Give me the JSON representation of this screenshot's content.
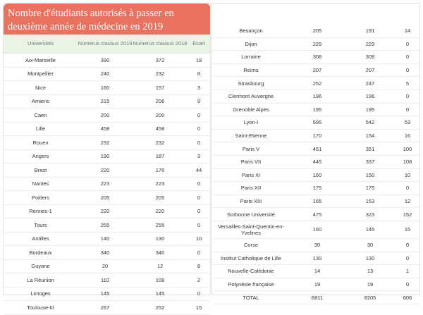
{
  "title": "Nombre d'étudiants autorisés à passer en deuxième année de médecine en 2019",
  "headers": {
    "universites": "Universités",
    "nc2019": "Numerus clausus 2019",
    "nc2018": "Numerus clausus 2018",
    "ecart": "Ecart"
  },
  "left_rows": [
    {
      "u": "Aix-Marseille",
      "a": "390",
      "b": "372",
      "e": "18"
    },
    {
      "u": "Montpellier",
      "a": "240",
      "b": "232",
      "e": "8"
    },
    {
      "u": "Nice",
      "a": "160",
      "b": "157",
      "e": "3"
    },
    {
      "u": "Amiens",
      "a": "215",
      "b": "206",
      "e": "9"
    },
    {
      "u": "Caen",
      "a": "200",
      "b": "200",
      "e": "0"
    },
    {
      "u": "Lille",
      "a": "458",
      "b": "458",
      "e": "0"
    },
    {
      "u": "Rouen",
      "a": "232",
      "b": "232",
      "e": "0"
    },
    {
      "u": "Angers",
      "a": "190",
      "b": "187",
      "e": "3"
    },
    {
      "u": "Brest",
      "a": "220",
      "b": "176",
      "e": "44"
    },
    {
      "u": "Nantes",
      "a": "223",
      "b": "223",
      "e": "0"
    },
    {
      "u": "Poitiers",
      "a": "205",
      "b": "205",
      "e": "0"
    },
    {
      "u": "Rennes-1",
      "a": "220",
      "b": "220",
      "e": "0"
    },
    {
      "u": "Tours",
      "a": "255",
      "b": "255",
      "e": "0"
    },
    {
      "u": "Antilles",
      "a": "140",
      "b": "130",
      "e": "10"
    },
    {
      "u": "Bordeaux",
      "a": "340",
      "b": "340",
      "e": "0"
    },
    {
      "u": "Guyane",
      "a": "20",
      "b": "12",
      "e": "8"
    },
    {
      "u": "La Réunion",
      "a": "110",
      "b": "108",
      "e": "2"
    },
    {
      "u": "Limoges",
      "a": "145",
      "b": "145",
      "e": "0"
    },
    {
      "u": "Toulouse-III",
      "a": "267",
      "b": "252",
      "e": "15"
    }
  ],
  "right_rows": [
    {
      "u": "Besançon",
      "a": "205",
      "b": "191",
      "e": "14"
    },
    {
      "u": "Dijon",
      "a": "229",
      "b": "229",
      "e": "0"
    },
    {
      "u": "Lorraine",
      "a": "308",
      "b": "308",
      "e": "0"
    },
    {
      "u": "Reims",
      "a": "207",
      "b": "207",
      "e": "0"
    },
    {
      "u": "Strasbourg",
      "a": "252",
      "b": "247",
      "e": "5"
    },
    {
      "u": "Clermont Auvergne",
      "a": "196",
      "b": "196",
      "e": "0"
    },
    {
      "u": "Grenoble Alpes",
      "a": "195",
      "b": "195",
      "e": "0"
    },
    {
      "u": "Lyon-I",
      "a": "595",
      "b": "542",
      "e": "53"
    },
    {
      "u": "Saint-Etienne",
      "a": "170",
      "b": "154",
      "e": "16"
    },
    {
      "u": "Paris V",
      "a": "451",
      "b": "351",
      "e": "100"
    },
    {
      "u": "Paris VII",
      "a": "445",
      "b": "337",
      "e": "108"
    },
    {
      "u": "Paris XI",
      "a": "160",
      "b": "150",
      "e": "10"
    },
    {
      "u": "Paris XII",
      "a": "175",
      "b": "175",
      "e": "0"
    },
    {
      "u": "Paris XIII",
      "a": "165",
      "b": "153",
      "e": "12"
    },
    {
      "u": "Sorbonne Université",
      "a": "475",
      "b": "323",
      "e": "152"
    },
    {
      "u": "Versailles-Saint-Quentin-en-Yvelines",
      "a": "160",
      "b": "145",
      "e": "15"
    },
    {
      "u": "Corse",
      "a": "30",
      "b": "30",
      "e": "0"
    },
    {
      "u": "Institut Catholique de Lille",
      "a": "130",
      "b": "130",
      "e": "0"
    },
    {
      "u": "Nouvelle-Calédonie",
      "a": "14",
      "b": "13",
      "e": "1"
    },
    {
      "u": "Polynésie française",
      "a": "19",
      "b": "19",
      "e": "0"
    },
    {
      "u": "TOTAL",
      "a": "8811",
      "b": "8205",
      "e": "606"
    }
  ]
}
